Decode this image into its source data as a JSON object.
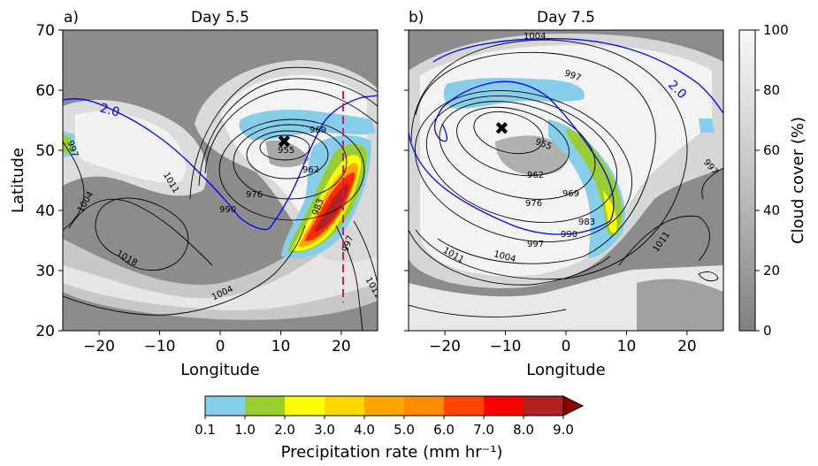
{
  "chart_data": [
    {
      "type": "contour",
      "panel_label": "a)",
      "title": "Day 5.5",
      "xlabel": "Longitude",
      "ylabel": "Latitude",
      "xlim": [
        -26,
        26
      ],
      "ylim": [
        20,
        70
      ],
      "xticks": [
        "−20",
        "−10",
        "0",
        "10",
        "20"
      ],
      "yticks": [
        "20",
        "30",
        "40",
        "50",
        "60",
        "70"
      ],
      "cyclone_center": {
        "lon": 11,
        "lat": 51.5
      },
      "pressure_contour_labels": [
        "955",
        "962",
        "969",
        "976",
        "983",
        "990",
        "997",
        "1004",
        "1011",
        "1018",
        "1004",
        "997",
        "1011"
      ],
      "pv_contour_label": "2.0",
      "section_line_lon": 20
    },
    {
      "type": "contour",
      "panel_label": "b)",
      "title": "Day 7.5",
      "xlabel": "Longitude",
      "xlim": [
        -26,
        26
      ],
      "ylim": [
        20,
        70
      ],
      "xticks": [
        "−20",
        "−10",
        "0",
        "10",
        "20"
      ],
      "cyclone_center": {
        "lon": -10,
        "lat": 54
      },
      "pressure_contour_labels": [
        "955",
        "962",
        "969",
        "976",
        "983",
        "990",
        "997",
        "1004",
        "1011",
        "1011",
        "1004",
        "997",
        "997"
      ],
      "pv_contour_label": "2.0"
    }
  ],
  "colorbar_cloud": {
    "label": "Cloud cover (%)",
    "ticks": [
      "0",
      "20",
      "40",
      "60",
      "80",
      "100"
    ]
  },
  "colorbar_precip": {
    "label": "Precipitation rate (mm hr⁻¹)",
    "ticks": [
      "0.1",
      "1.0",
      "2.0",
      "3.0",
      "4.0",
      "5.0",
      "6.0",
      "7.0",
      "8.0",
      "9.0"
    ],
    "colors": [
      "#87ceeb",
      "#9acd32",
      "#ffff00",
      "#ffd700",
      "#ffa500",
      "#ff8c00",
      "#ff4500",
      "#ff0000",
      "#b22222",
      "#8b0000"
    ]
  }
}
